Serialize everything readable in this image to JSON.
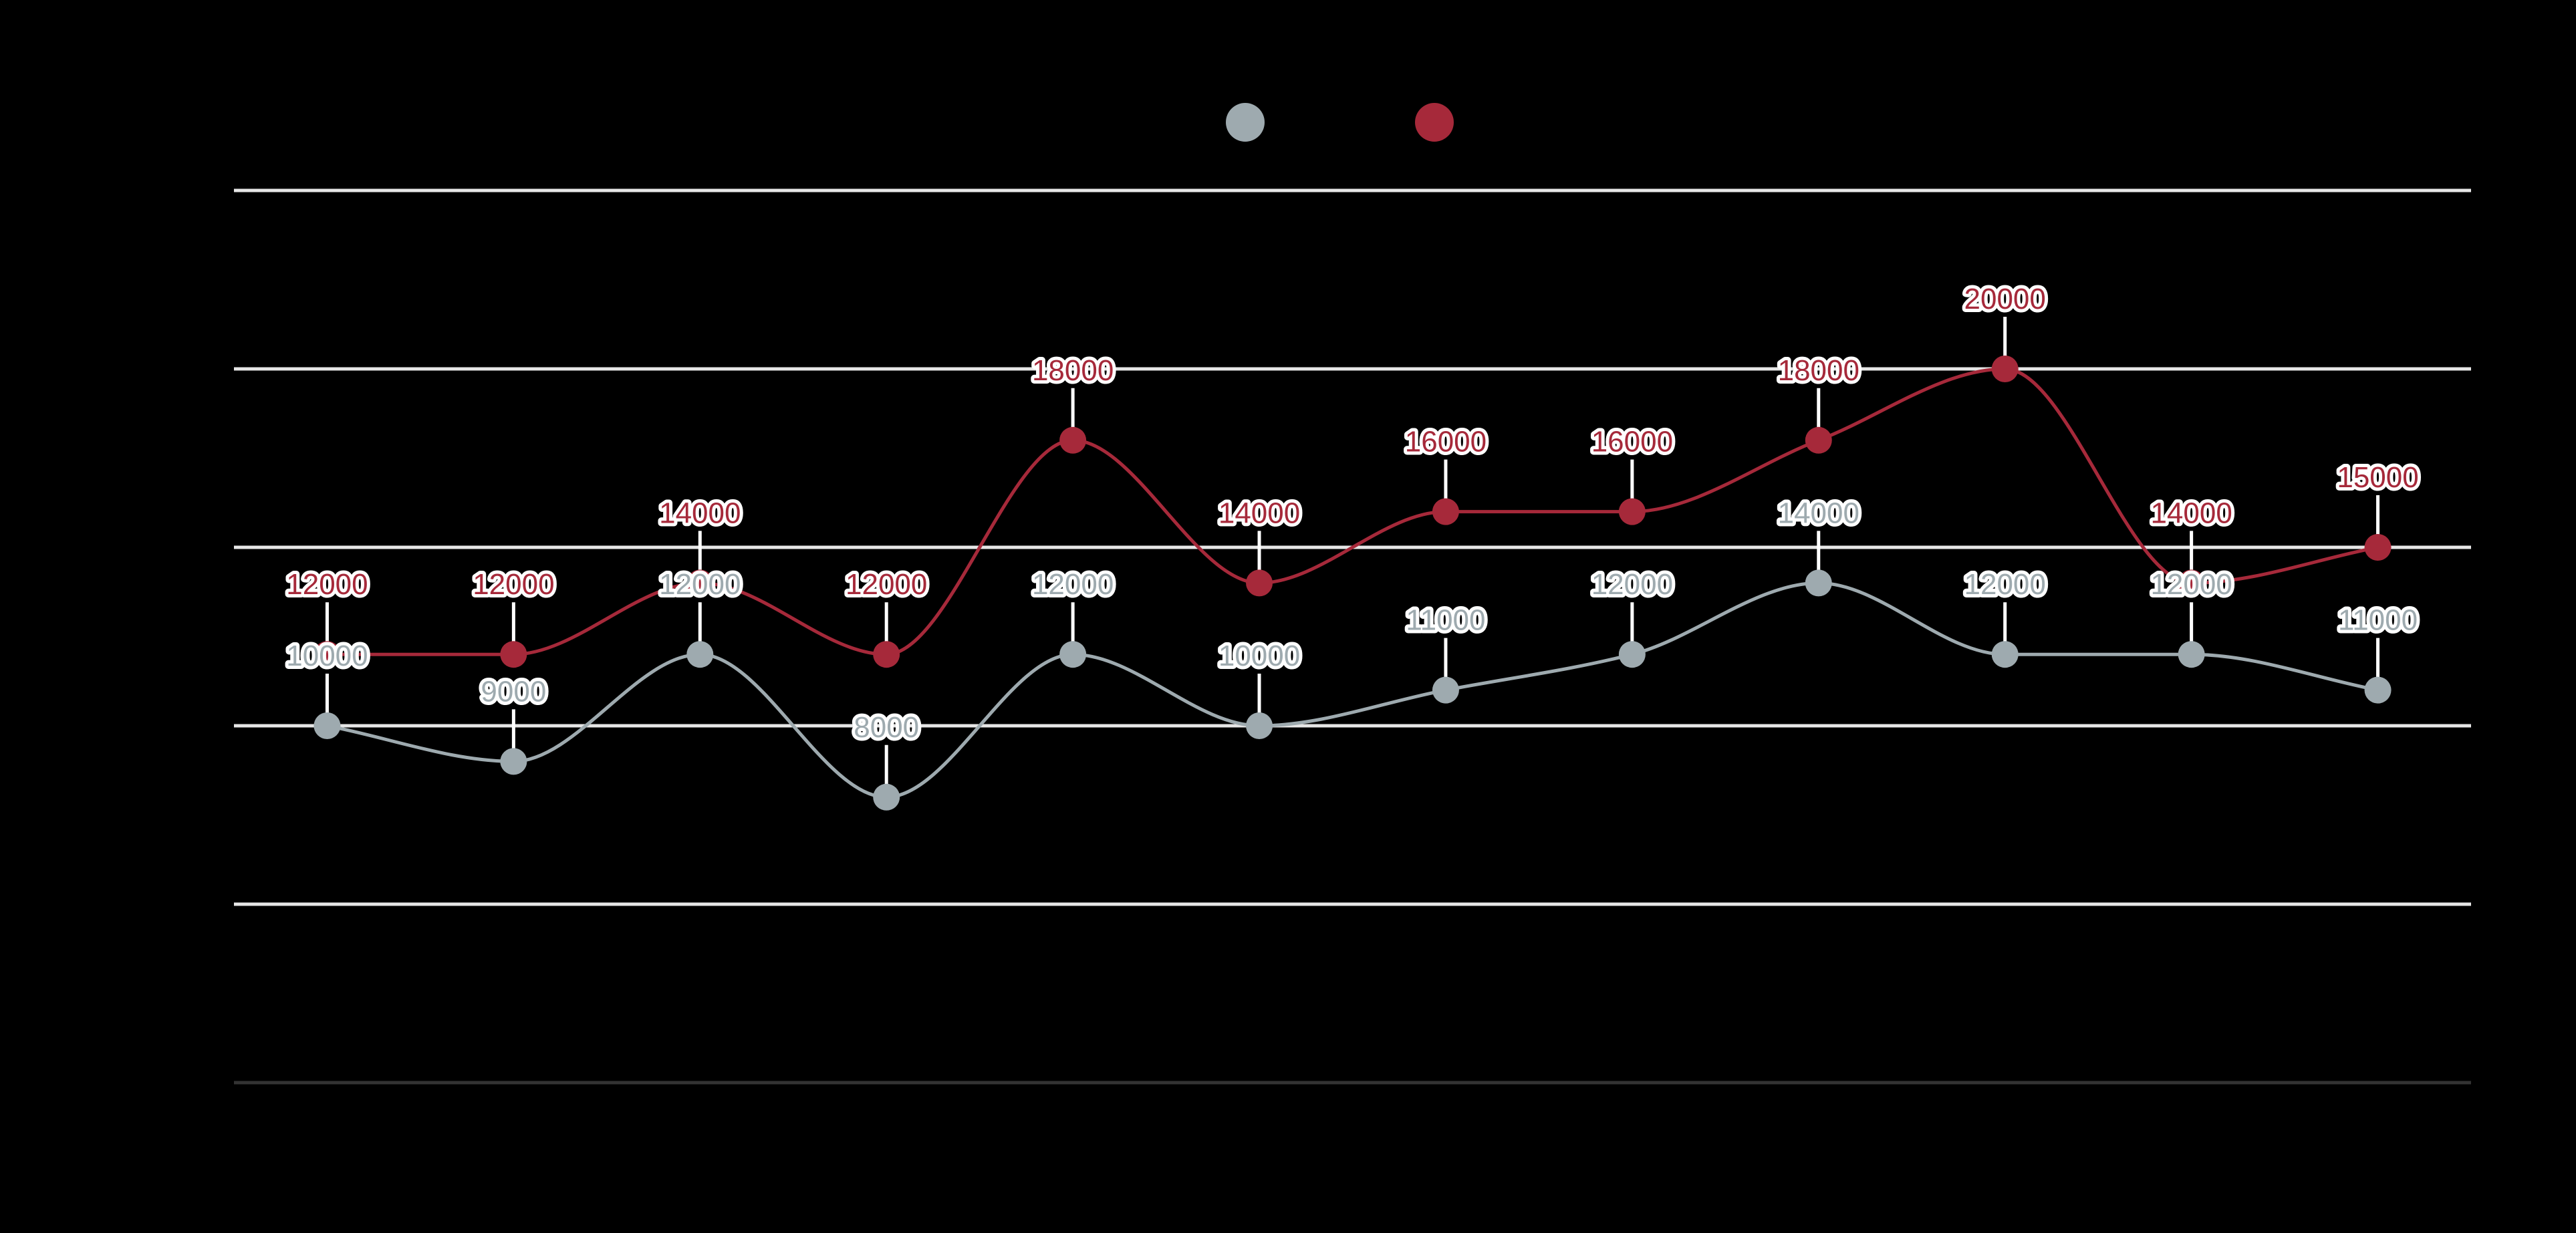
{
  "chart_data": {
    "type": "line",
    "title": "",
    "xlabel": "",
    "ylabel": "",
    "categories": [
      "",
      "",
      "",
      "",
      "",
      "",
      "",
      "",
      "",
      "",
      "",
      ""
    ],
    "ylim": [
      0,
      25000
    ],
    "y_gridlines": [
      5000,
      10000,
      15000,
      20000,
      25000
    ],
    "grid": true,
    "legend": "top-center",
    "smooth": true,
    "series": [
      {
        "color": "#9eaaaf",
        "values": [
          10000,
          9000,
          12000,
          8000,
          12000,
          10000,
          11000,
          12000,
          14000,
          12000,
          12000,
          11000
        ]
      },
      {
        "color": "#a6293a",
        "values": [
          12000,
          12000,
          14000,
          12000,
          18000,
          14000,
          16000,
          16000,
          18000,
          20000,
          14000,
          15000
        ]
      }
    ]
  }
}
